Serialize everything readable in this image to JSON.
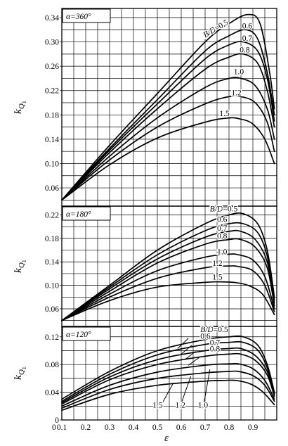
{
  "chart_data": [
    {
      "type": "line",
      "alpha_label": "α=360°",
      "ylabel": "k",
      "ylabel_sub": "Q",
      "ylabel_sub2": "1",
      "xlim": [
        0.1,
        1.0
      ],
      "ylim": [
        0.03,
        0.355
      ],
      "yticks": [
        0.06,
        0.1,
        0.14,
        0.18,
        0.22,
        0.26,
        0.3,
        0.34
      ],
      "ytick_labels": [
        "0.06",
        "0.10",
        "0.14",
        "0.18",
        "0.22",
        "0.26",
        "0.30",
        "0.34"
      ],
      "series": [
        {
          "name": "B/D=0.5",
          "x": [
            0.1,
            0.3,
            0.5,
            0.7,
            0.8,
            0.88,
            0.93,
            0.97,
            0.99
          ],
          "y": [
            0.04,
            0.13,
            0.215,
            0.3,
            0.33,
            0.345,
            0.33,
            0.25,
            0.19
          ]
        },
        {
          "name": "0.6",
          "x": [
            0.1,
            0.3,
            0.5,
            0.7,
            0.8,
            0.87,
            0.92,
            0.96,
            0.99
          ],
          "y": [
            0.04,
            0.125,
            0.205,
            0.285,
            0.31,
            0.32,
            0.305,
            0.25,
            0.18
          ]
        },
        {
          "name": "0.7",
          "x": [
            0.1,
            0.3,
            0.5,
            0.7,
            0.8,
            0.86,
            0.92,
            0.96,
            0.99
          ],
          "y": [
            0.04,
            0.122,
            0.198,
            0.272,
            0.295,
            0.3,
            0.285,
            0.24,
            0.17
          ]
        },
        {
          "name": "0.8",
          "x": [
            0.1,
            0.3,
            0.5,
            0.7,
            0.8,
            0.86,
            0.92,
            0.96,
            0.99
          ],
          "y": [
            0.04,
            0.118,
            0.19,
            0.255,
            0.275,
            0.28,
            0.265,
            0.22,
            0.16
          ]
        },
        {
          "name": "1.0",
          "x": [
            0.1,
            0.3,
            0.5,
            0.7,
            0.8,
            0.85,
            0.91,
            0.96,
            0.99
          ],
          "y": [
            0.04,
            0.112,
            0.175,
            0.225,
            0.24,
            0.24,
            0.228,
            0.19,
            0.14
          ]
        },
        {
          "name": "1.2",
          "x": [
            0.1,
            0.3,
            0.5,
            0.7,
            0.8,
            0.85,
            0.91,
            0.96,
            0.99
          ],
          "y": [
            0.04,
            0.106,
            0.16,
            0.198,
            0.21,
            0.21,
            0.2,
            0.168,
            0.12
          ]
        },
        {
          "name": "1.5",
          "x": [
            0.1,
            0.3,
            0.5,
            0.7,
            0.8,
            0.85,
            0.9,
            0.95,
            0.99
          ],
          "y": [
            0.04,
            0.098,
            0.142,
            0.168,
            0.175,
            0.173,
            0.165,
            0.14,
            0.1
          ]
        }
      ],
      "labels": [
        {
          "text": "B/D=0.5",
          "x": 0.7,
          "y": 0.307,
          "rotate": -30
        },
        {
          "text": "0.6",
          "x": 0.855,
          "y": 0.322
        },
        {
          "text": "0.7",
          "x": 0.855,
          "y": 0.302
        },
        {
          "text": "0.8",
          "x": 0.845,
          "y": 0.283
        },
        {
          "text": "1.0",
          "x": 0.82,
          "y": 0.247
        },
        {
          "text": "1.2",
          "x": 0.81,
          "y": 0.212
        },
        {
          "text": "1.5",
          "x": 0.76,
          "y": 0.178
        }
      ]
    },
    {
      "type": "line",
      "alpha_label": "α=180°",
      "ylabel": "k",
      "ylabel_sub": "Q",
      "ylabel_sub2": "1",
      "xlim": [
        0.1,
        1.0
      ],
      "ylim": [
        0.03,
        0.235
      ],
      "yticks": [
        0.06,
        0.1,
        0.14,
        0.18,
        0.22
      ],
      "ytick_labels": [
        "0.06",
        "0.10",
        "0.14",
        "0.18",
        "0.22"
      ],
      "series": [
        {
          "name": "B/D=0.5",
          "x": [
            0.1,
            0.3,
            0.5,
            0.7,
            0.8,
            0.86,
            0.92,
            0.96,
            0.99
          ],
          "y": [
            0.04,
            0.1,
            0.16,
            0.205,
            0.22,
            0.222,
            0.205,
            0.16,
            0.08
          ]
        },
        {
          "name": "0.6",
          "x": [
            0.1,
            0.3,
            0.5,
            0.7,
            0.8,
            0.86,
            0.92,
            0.96,
            0.99
          ],
          "y": [
            0.04,
            0.097,
            0.152,
            0.193,
            0.205,
            0.205,
            0.19,
            0.15,
            0.075
          ]
        },
        {
          "name": "0.7",
          "x": [
            0.1,
            0.3,
            0.5,
            0.7,
            0.8,
            0.85,
            0.91,
            0.96,
            0.99
          ],
          "y": [
            0.04,
            0.094,
            0.145,
            0.182,
            0.192,
            0.192,
            0.178,
            0.14,
            0.07
          ]
        },
        {
          "name": "0.8",
          "x": [
            0.1,
            0.3,
            0.5,
            0.7,
            0.8,
            0.85,
            0.91,
            0.96,
            0.99
          ],
          "y": [
            0.04,
            0.09,
            0.138,
            0.17,
            0.178,
            0.178,
            0.165,
            0.13,
            0.065
          ]
        },
        {
          "name": "1.0",
          "x": [
            0.1,
            0.3,
            0.5,
            0.7,
            0.8,
            0.84,
            0.9,
            0.95,
            0.99
          ],
          "y": [
            0.04,
            0.085,
            0.125,
            0.148,
            0.153,
            0.152,
            0.143,
            0.115,
            0.06
          ]
        },
        {
          "name": "1.2",
          "x": [
            0.1,
            0.3,
            0.5,
            0.7,
            0.8,
            0.84,
            0.9,
            0.95,
            0.99
          ],
          "y": [
            0.04,
            0.08,
            0.112,
            0.13,
            0.133,
            0.132,
            0.125,
            0.1,
            0.055
          ]
        },
        {
          "name": "1.5",
          "x": [
            0.1,
            0.3,
            0.5,
            0.7,
            0.76,
            0.82,
            0.88,
            0.94,
            0.99
          ],
          "y": [
            0.04,
            0.074,
            0.097,
            0.105,
            0.106,
            0.105,
            0.1,
            0.085,
            0.05
          ]
        }
      ],
      "labels": [
        {
          "text": "B/D=0.5",
          "x": 0.72,
          "y": 0.226
        },
        {
          "text": "0.6",
          "x": 0.75,
          "y": 0.208
        },
        {
          "text": "0.7",
          "x": 0.75,
          "y": 0.193
        },
        {
          "text": "0.8",
          "x": 0.75,
          "y": 0.18
        },
        {
          "text": "1.0",
          "x": 0.75,
          "y": 0.153
        },
        {
          "text": "1.2",
          "x": 0.73,
          "y": 0.133
        },
        {
          "text": "1.5",
          "x": 0.73,
          "y": 0.11
        }
      ]
    },
    {
      "type": "line",
      "alpha_label": "α=120°",
      "ylabel": "k",
      "ylabel_sub": "Q",
      "ylabel_sub2": "1",
      "xlabel": "ε",
      "xlim": [
        0.1,
        1.0
      ],
      "ylim": [
        0,
        0.135
      ],
      "yticks": [
        0,
        0.04,
        0.08,
        0.12
      ],
      "ytick_labels": [
        "0",
        "0.04",
        "0.08",
        "0.12"
      ],
      "xticks": [
        0.1,
        0.2,
        0.3,
        0.4,
        0.5,
        0.6,
        0.7,
        0.8,
        0.9
      ],
      "xtick_labels": [
        "0.1",
        "0.2",
        "0.3",
        "0.4",
        "0.5",
        "0.6",
        "0.7",
        "0.8",
        "0.9"
      ],
      "x_axis_origin_label": "0",
      "series": [
        {
          "name": "B/D=0.5",
          "x": [
            0.1,
            0.3,
            0.5,
            0.7,
            0.8,
            0.86,
            0.92,
            0.96,
            0.99
          ],
          "y": [
            0.03,
            0.07,
            0.1,
            0.116,
            0.12,
            0.12,
            0.108,
            0.08,
            0.04
          ]
        },
        {
          "name": "0.6",
          "x": [
            0.1,
            0.3,
            0.5,
            0.7,
            0.8,
            0.86,
            0.92,
            0.96,
            0.99
          ],
          "y": [
            0.027,
            0.066,
            0.094,
            0.109,
            0.112,
            0.112,
            0.101,
            0.075,
            0.038
          ]
        },
        {
          "name": "0.7",
          "x": [
            0.1,
            0.3,
            0.5,
            0.7,
            0.8,
            0.85,
            0.91,
            0.96,
            0.99
          ],
          "y": [
            0.025,
            0.062,
            0.087,
            0.1,
            0.103,
            0.103,
            0.093,
            0.07,
            0.036
          ]
        },
        {
          "name": "0.8",
          "x": [
            0.1,
            0.3,
            0.5,
            0.7,
            0.8,
            0.85,
            0.91,
            0.96,
            0.99
          ],
          "y": [
            0.023,
            0.058,
            0.08,
            0.092,
            0.095,
            0.095,
            0.086,
            0.065,
            0.034
          ]
        },
        {
          "name": "1.0",
          "x": [
            0.1,
            0.3,
            0.5,
            0.7,
            0.8,
            0.84,
            0.9,
            0.95,
            0.99
          ],
          "y": [
            0.02,
            0.05,
            0.069,
            0.079,
            0.081,
            0.081,
            0.074,
            0.057,
            0.03
          ]
        },
        {
          "name": "1.2",
          "x": [
            0.1,
            0.3,
            0.5,
            0.7,
            0.8,
            0.84,
            0.9,
            0.95,
            0.99
          ],
          "y": [
            0.017,
            0.044,
            0.06,
            0.068,
            0.07,
            0.07,
            0.064,
            0.05,
            0.027
          ]
        },
        {
          "name": "1.5",
          "x": [
            0.1,
            0.3,
            0.5,
            0.7,
            0.78,
            0.83,
            0.89,
            0.94,
            0.99
          ],
          "y": [
            0.014,
            0.037,
            0.05,
            0.056,
            0.057,
            0.057,
            0.052,
            0.041,
            0.022
          ]
        }
      ],
      "labels": [
        {
          "text": "B/D=0.5",
          "x": 0.68,
          "y": 0.127
        },
        {
          "text": "0.6",
          "x": 0.68,
          "y": 0.117
        },
        {
          "text": "0.7",
          "x": 0.72,
          "y": 0.108
        },
        {
          "text": "0.8",
          "x": 0.72,
          "y": 0.099
        },
        {
          "text": "1.5",
          "x": 0.48,
          "y": 0.018
        },
        {
          "text": "1.2",
          "x": 0.575,
          "y": 0.018
        },
        {
          "text": "1.0",
          "x": 0.67,
          "y": 0.018
        }
      ],
      "label_leaders": [
        {
          "from": [
            0.585,
            0.103
          ],
          "to": [
            0.63,
            0.118
          ]
        },
        {
          "from": [
            0.6,
            0.095
          ],
          "to": [
            0.645,
            0.108
          ]
        },
        {
          "from": [
            0.615,
            0.087
          ],
          "to": [
            0.66,
            0.099
          ]
        },
        {
          "from": [
            0.63,
            0.079
          ],
          "to": [
            0.675,
            0.09
          ]
        },
        {
          "from": [
            0.52,
            0.024
          ],
          "to": [
            0.565,
            0.052
          ]
        },
        {
          "from": [
            0.6,
            0.024
          ],
          "to": [
            0.64,
            0.063
          ]
        },
        {
          "from": [
            0.695,
            0.024
          ],
          "to": [
            0.72,
            0.073
          ]
        }
      ]
    }
  ]
}
